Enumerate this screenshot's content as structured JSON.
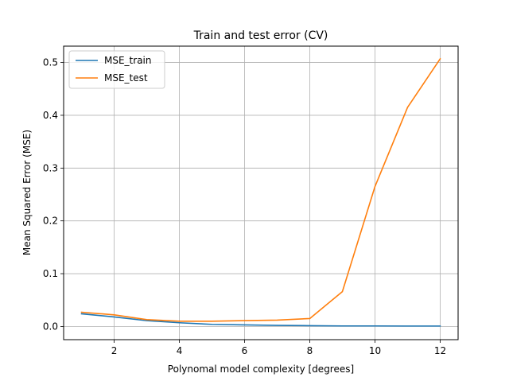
{
  "chart_data": {
    "type": "line",
    "title": "Train and test error (CV)",
    "xlabel": "Polynomal model complexity [degrees]",
    "ylabel": "Mean Squared Error (MSE)",
    "xlim": [
      0.45,
      12.55
    ],
    "ylim": [
      -0.025,
      0.531
    ],
    "x_ticks": [
      2,
      4,
      6,
      8,
      10,
      12
    ],
    "x_tick_labels": [
      "2",
      "4",
      "6",
      "8",
      "10",
      "12"
    ],
    "y_ticks": [
      0.0,
      0.1,
      0.2,
      0.3,
      0.4,
      0.5
    ],
    "y_tick_labels": [
      "0.0",
      "0.1",
      "0.2",
      "0.3",
      "0.4",
      "0.5"
    ],
    "grid": true,
    "legend_position": "top-left",
    "x": [
      1,
      2,
      3,
      4,
      5,
      6,
      7,
      8,
      9,
      10,
      11,
      12
    ],
    "series": [
      {
        "name": "MSE_train",
        "color": "#1f77b4",
        "values": [
          0.024,
          0.018,
          0.011,
          0.007,
          0.004,
          0.003,
          0.002,
          0.0015,
          0.001,
          0.001,
          0.0008,
          0.0008
        ]
      },
      {
        "name": "MSE_test",
        "color": "#ff7f0e",
        "values": [
          0.027,
          0.022,
          0.013,
          0.01,
          0.01,
          0.011,
          0.012,
          0.015,
          0.066,
          0.265,
          0.415,
          0.507
        ]
      }
    ]
  }
}
